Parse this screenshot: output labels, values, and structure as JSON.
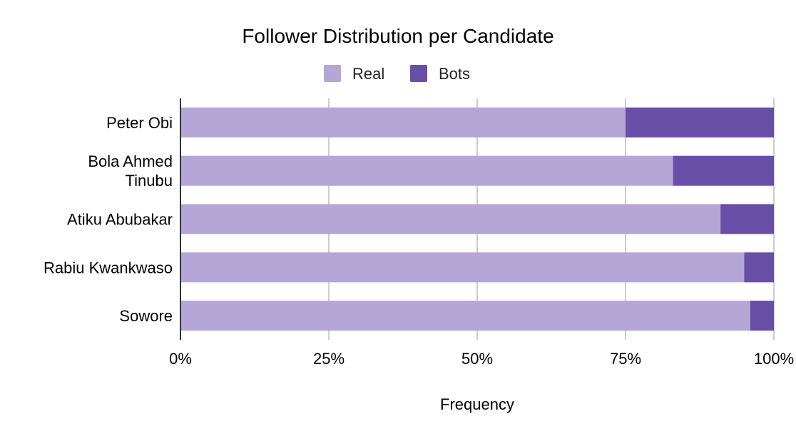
{
  "chart_data": {
    "type": "bar",
    "orientation": "horizontal",
    "stacked": "percent",
    "title": "Follower Distribution per Candidate",
    "xlabel": "Frequency",
    "ylabel": "",
    "categories": [
      "Peter Obi",
      "Bola Ahmed Tinubu",
      "Atiku Abubakar",
      "Rabiu Kwankwaso",
      "Sowore"
    ],
    "category_lines": [
      [
        "Peter Obi"
      ],
      [
        "Bola Ahmed",
        "Tinubu"
      ],
      [
        "Atiku Abubakar"
      ],
      [
        "Rabiu Kwankwaso"
      ],
      [
        "Sowore"
      ]
    ],
    "series": [
      {
        "name": "Real",
        "values": [
          75,
          83,
          91,
          95,
          96
        ],
        "color": "#b4a7d6"
      },
      {
        "name": "Bots",
        "values": [
          25,
          17,
          9,
          5,
          4
        ],
        "color": "#674ea7"
      }
    ],
    "xlim": [
      0,
      100
    ],
    "xticks": [
      "0%",
      "25%",
      "50%",
      "75%",
      "100%"
    ],
    "grid": true,
    "legend_position": "top"
  }
}
